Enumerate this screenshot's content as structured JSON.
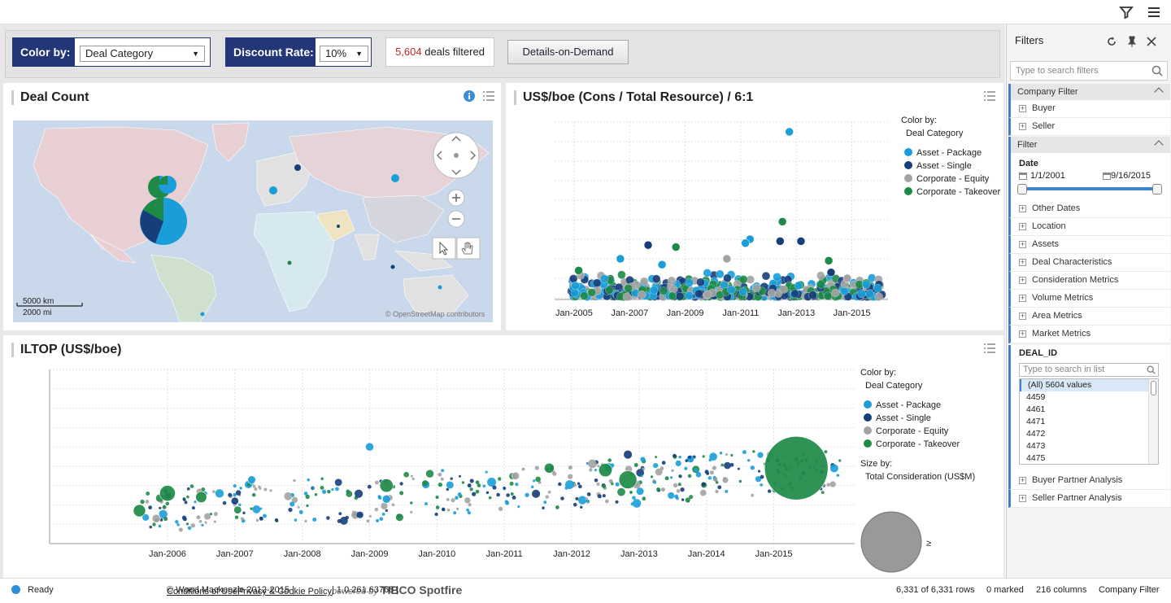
{
  "controls": {
    "color_by_label": "Color by:",
    "color_by_value": "Deal Category",
    "discount_label": "Discount Rate:",
    "discount_value": "10%",
    "deals_count": "5,604",
    "deals_suffix": " deals filtered",
    "details_button": "Details-on-Demand"
  },
  "deal_count": {
    "title": "Deal Count",
    "scale_km": "5000 km",
    "scale_mi": "2000 mi",
    "attribution": "© OpenStreetMap contributors"
  },
  "resource_chart": {
    "title": "US$/boe (Cons / Total Resource) / 6:1",
    "legend_title": "Color by:",
    "legend_sub": "Deal Category",
    "x_ticks": [
      "Jan-2005",
      "Jan-2007",
      "Jan-2009",
      "Jan-2011",
      "Jan-2013",
      "Jan-2015"
    ]
  },
  "iltop_chart": {
    "title": "ILTOP (US$/boe)",
    "legend_title": "Color by:",
    "legend_sub": "Deal Category",
    "size_title": "Size by:",
    "size_sub": "Total Consideration (US$M)",
    "size_ge": "≥",
    "size_eq": "=",
    "x_ticks": [
      "Jan-2006",
      "Jan-2007",
      "Jan-2008",
      "Jan-2009",
      "Jan-2010",
      "Jan-2011",
      "Jan-2012",
      "Jan-2013",
      "Jan-2014",
      "Jan-2015"
    ]
  },
  "categories": [
    {
      "name": "Asset - Package",
      "color": "#1a9ed9"
    },
    {
      "name": "Asset - Single",
      "color": "#163f7a"
    },
    {
      "name": "Corporate - Equity",
      "color": "#a3a3a3"
    },
    {
      "name": "Corporate - Takeover",
      "color": "#1f8a48"
    }
  ],
  "chart_data": [
    {
      "type": "scatter",
      "title": "US$/boe (Cons / Total Resource) / 6:1",
      "x_ticks": [
        "Jan-2005",
        "Jan-2007",
        "Jan-2009",
        "Jan-2011",
        "Jan-2013",
        "Jan-2015"
      ],
      "series": [
        {
          "name": "Asset - Package",
          "points": [
            [
              "2012-09",
              8.5
            ],
            [
              "2011-04",
              3.0
            ],
            [
              "2011-02",
              2.8
            ],
            [
              "2006-08",
              2.0
            ],
            [
              "2008-02",
              1.7
            ]
          ]
        },
        {
          "name": "Asset - Single",
          "points": [
            [
              "2007-08",
              2.7
            ],
            [
              "2012-05",
              2.9
            ],
            [
              "2013-02",
              2.9
            ],
            [
              "2014-03",
              1.3
            ]
          ]
        },
        {
          "name": "Corporate - Equity",
          "points": [
            [
              "2010-06",
              2.0
            ],
            [
              "2014-10",
              1.0
            ]
          ]
        },
        {
          "name": "Corporate - Takeover",
          "points": [
            [
              "2012-06",
              3.9
            ],
            [
              "2008-08",
              2.6
            ],
            [
              "2005-02",
              1.4
            ],
            [
              "2014-02",
              1.9
            ]
          ]
        }
      ]
    },
    {
      "type": "scatter",
      "title": "ILTOP (US$/boe)",
      "x_ticks": [
        "Jan-2006",
        "Jan-2007",
        "Jan-2008",
        "Jan-2009",
        "Jan-2010",
        "Jan-2011",
        "Jan-2012",
        "Jan-2013",
        "Jan-2014",
        "Jan-2015"
      ],
      "size_by": "Total Consideration (US$M)",
      "series": [
        {
          "name": "Corporate - Takeover",
          "points": [
            [
              "2015-04",
              3.9,
              5.0
            ],
            [
              "2012-10",
              3.3,
              1.0
            ],
            [
              "2012-06",
              3.8,
              0.6
            ],
            [
              "2009-03",
              3.0,
              0.6
            ],
            [
              "2006-00",
              2.6,
              0.8
            ],
            [
              "2005-07",
              1.7,
              0.5
            ],
            [
              "2006-06",
              2.4,
              0.4
            ],
            [
              "2011-08",
              3.9,
              0.3
            ]
          ]
        },
        {
          "name": "Asset - Package",
          "points": [
            [
              "2009-00",
              5.0,
              0.15
            ],
            [
              "2007-03",
              3.3,
              0.12
            ],
            [
              "2009-03",
              2.3,
              0.15
            ]
          ]
        },
        {
          "name": "Asset - Single",
          "points": [
            [
              "2007-00",
              2.2,
              0.1
            ],
            [
              "2012-10",
              4.6,
              0.2
            ]
          ]
        },
        {
          "name": "Corporate - Equity",
          "points": [
            [
              "2005-10",
              1.3,
              0.15
            ],
            [
              "2011-02",
              3.5,
              0.1
            ]
          ]
        }
      ]
    }
  ],
  "filters": {
    "title": "Filters",
    "search_placeholder": "Type to search filters",
    "company_filter": "Company Filter",
    "buyer": "Buyer",
    "seller": "Seller",
    "filter": "Filter",
    "date": "Date",
    "date_from": "1/1/2001",
    "date_to": "9/16/2015",
    "items": [
      "Other Dates",
      "Location",
      "Assets",
      "Deal Characteristics",
      "Consideration Metrics",
      "Volume Metrics",
      "Area Metrics",
      "Market Metrics"
    ],
    "deal_id": "DEAL_ID",
    "list_placeholder": "Type to search in list",
    "list_values": [
      "(All) 5604 values",
      "4459",
      "4461",
      "4471",
      "4472",
      "4473",
      "4475"
    ],
    "buyer_partner": "Buyer Partner Analysis",
    "seller_partner": "Seller Partner Analysis"
  },
  "status": {
    "ready": "Ready",
    "copyright": "© Wood Mackenzie 2012-2015 | ",
    "conditions": "Conditions of Use",
    "sep": " | ",
    "privacy": "Privacy & Cookie Policy",
    "version": " | 1.0.261.63768 | ",
    "powered": "powered by",
    "brand": "TIBCO Spotfire",
    "rows": "6,331 of 6,331 rows",
    "marked": "0 marked",
    "columns": "216 columns",
    "filter_scheme": "Company Filter"
  }
}
